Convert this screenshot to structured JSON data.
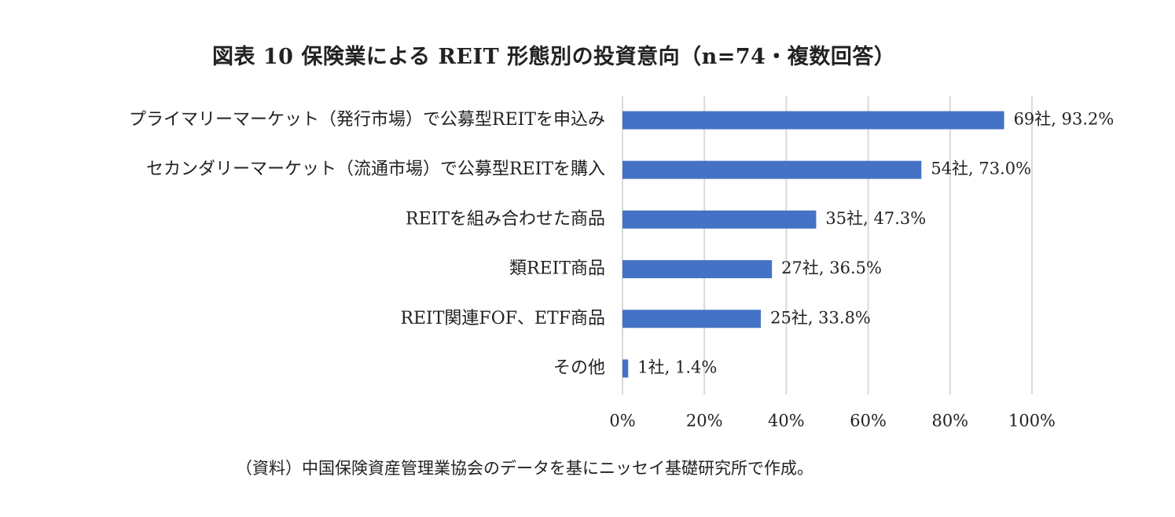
{
  "title": "図表 10 保険業による REIT 形態別の投資意向（n=74・複数回答）",
  "source": "（資料）中国保険資産管理業協会のデータを基にニッセイ基礎研究所で作成。",
  "chart_data": {
    "type": "bar",
    "orientation": "horizontal",
    "categories": [
      "プライマリーマーケット（発行市場）で公募型REITを申込み",
      "セカンダリーマーケット（流通市場）で公募型REITを購入",
      "REITを組み合わせた商品",
      "類REIT商品",
      "REIT関連FOF、ETF商品",
      "その他"
    ],
    "values": [
      93.2,
      73.0,
      47.3,
      36.5,
      33.8,
      1.4
    ],
    "counts": [
      69,
      54,
      35,
      27,
      25,
      1
    ],
    "data_labels": [
      "69社, 93.2%",
      "54社, 73.0%",
      "35社, 47.3%",
      "27社, 36.5%",
      "25社, 33.8%",
      "1社, 1.4%"
    ],
    "xlim": [
      0,
      100
    ],
    "x_ticks": [
      0,
      20,
      40,
      60,
      80,
      100
    ],
    "x_tick_labels": [
      "0%",
      "20%",
      "40%",
      "60%",
      "80%",
      "100%"
    ],
    "bar_color": "#4472C4",
    "grid_color": "#D9D9D9",
    "grid": true,
    "legend": "none"
  }
}
